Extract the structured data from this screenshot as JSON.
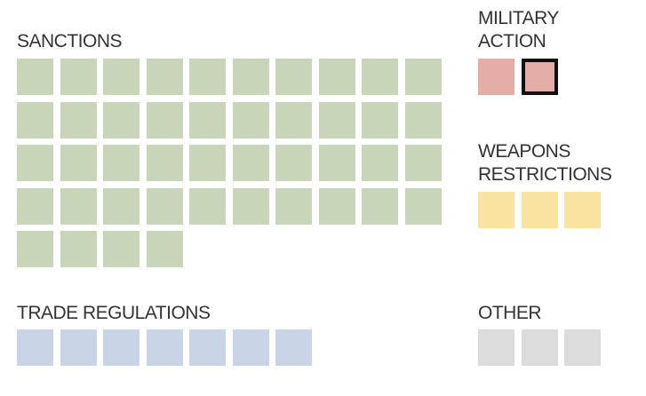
{
  "chart_data": {
    "type": "waffle",
    "unit": "",
    "colors": {
      "sanctions": "#c8d5b9",
      "military": "#e4ada5",
      "weapons": "#f8e3a1",
      "trade": "#c9d5e6",
      "other": "#dcdcdc",
      "highlight_border": "#111111"
    },
    "categories": [
      {
        "key": "sanctions",
        "label_lines": [
          "SANCTIONS"
        ],
        "count": 44,
        "highlighted": []
      },
      {
        "key": "military",
        "label_lines": [
          "MILITARY",
          "ACTION"
        ],
        "count": 2,
        "highlighted": [
          1
        ]
      },
      {
        "key": "weapons",
        "label_lines": [
          "WEAPONS",
          "RESTRICTIONS"
        ],
        "count": 3,
        "highlighted": []
      },
      {
        "key": "trade",
        "label_lines": [
          "TRADE REGULATIONS"
        ],
        "count": 7,
        "highlighted": []
      },
      {
        "key": "other",
        "label_lines": [
          "OTHER"
        ],
        "count": 3,
        "highlighted": []
      }
    ]
  }
}
